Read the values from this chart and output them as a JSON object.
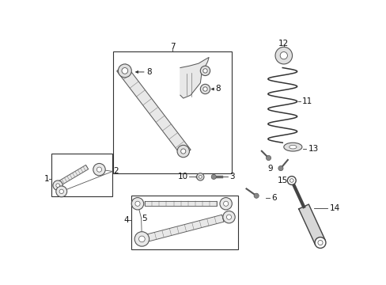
{
  "background_color": "#ffffff",
  "fig_width": 4.89,
  "fig_height": 3.6,
  "dpi": 100,
  "line_color": "#333333",
  "text_color": "#111111",
  "font_size": 7.5
}
